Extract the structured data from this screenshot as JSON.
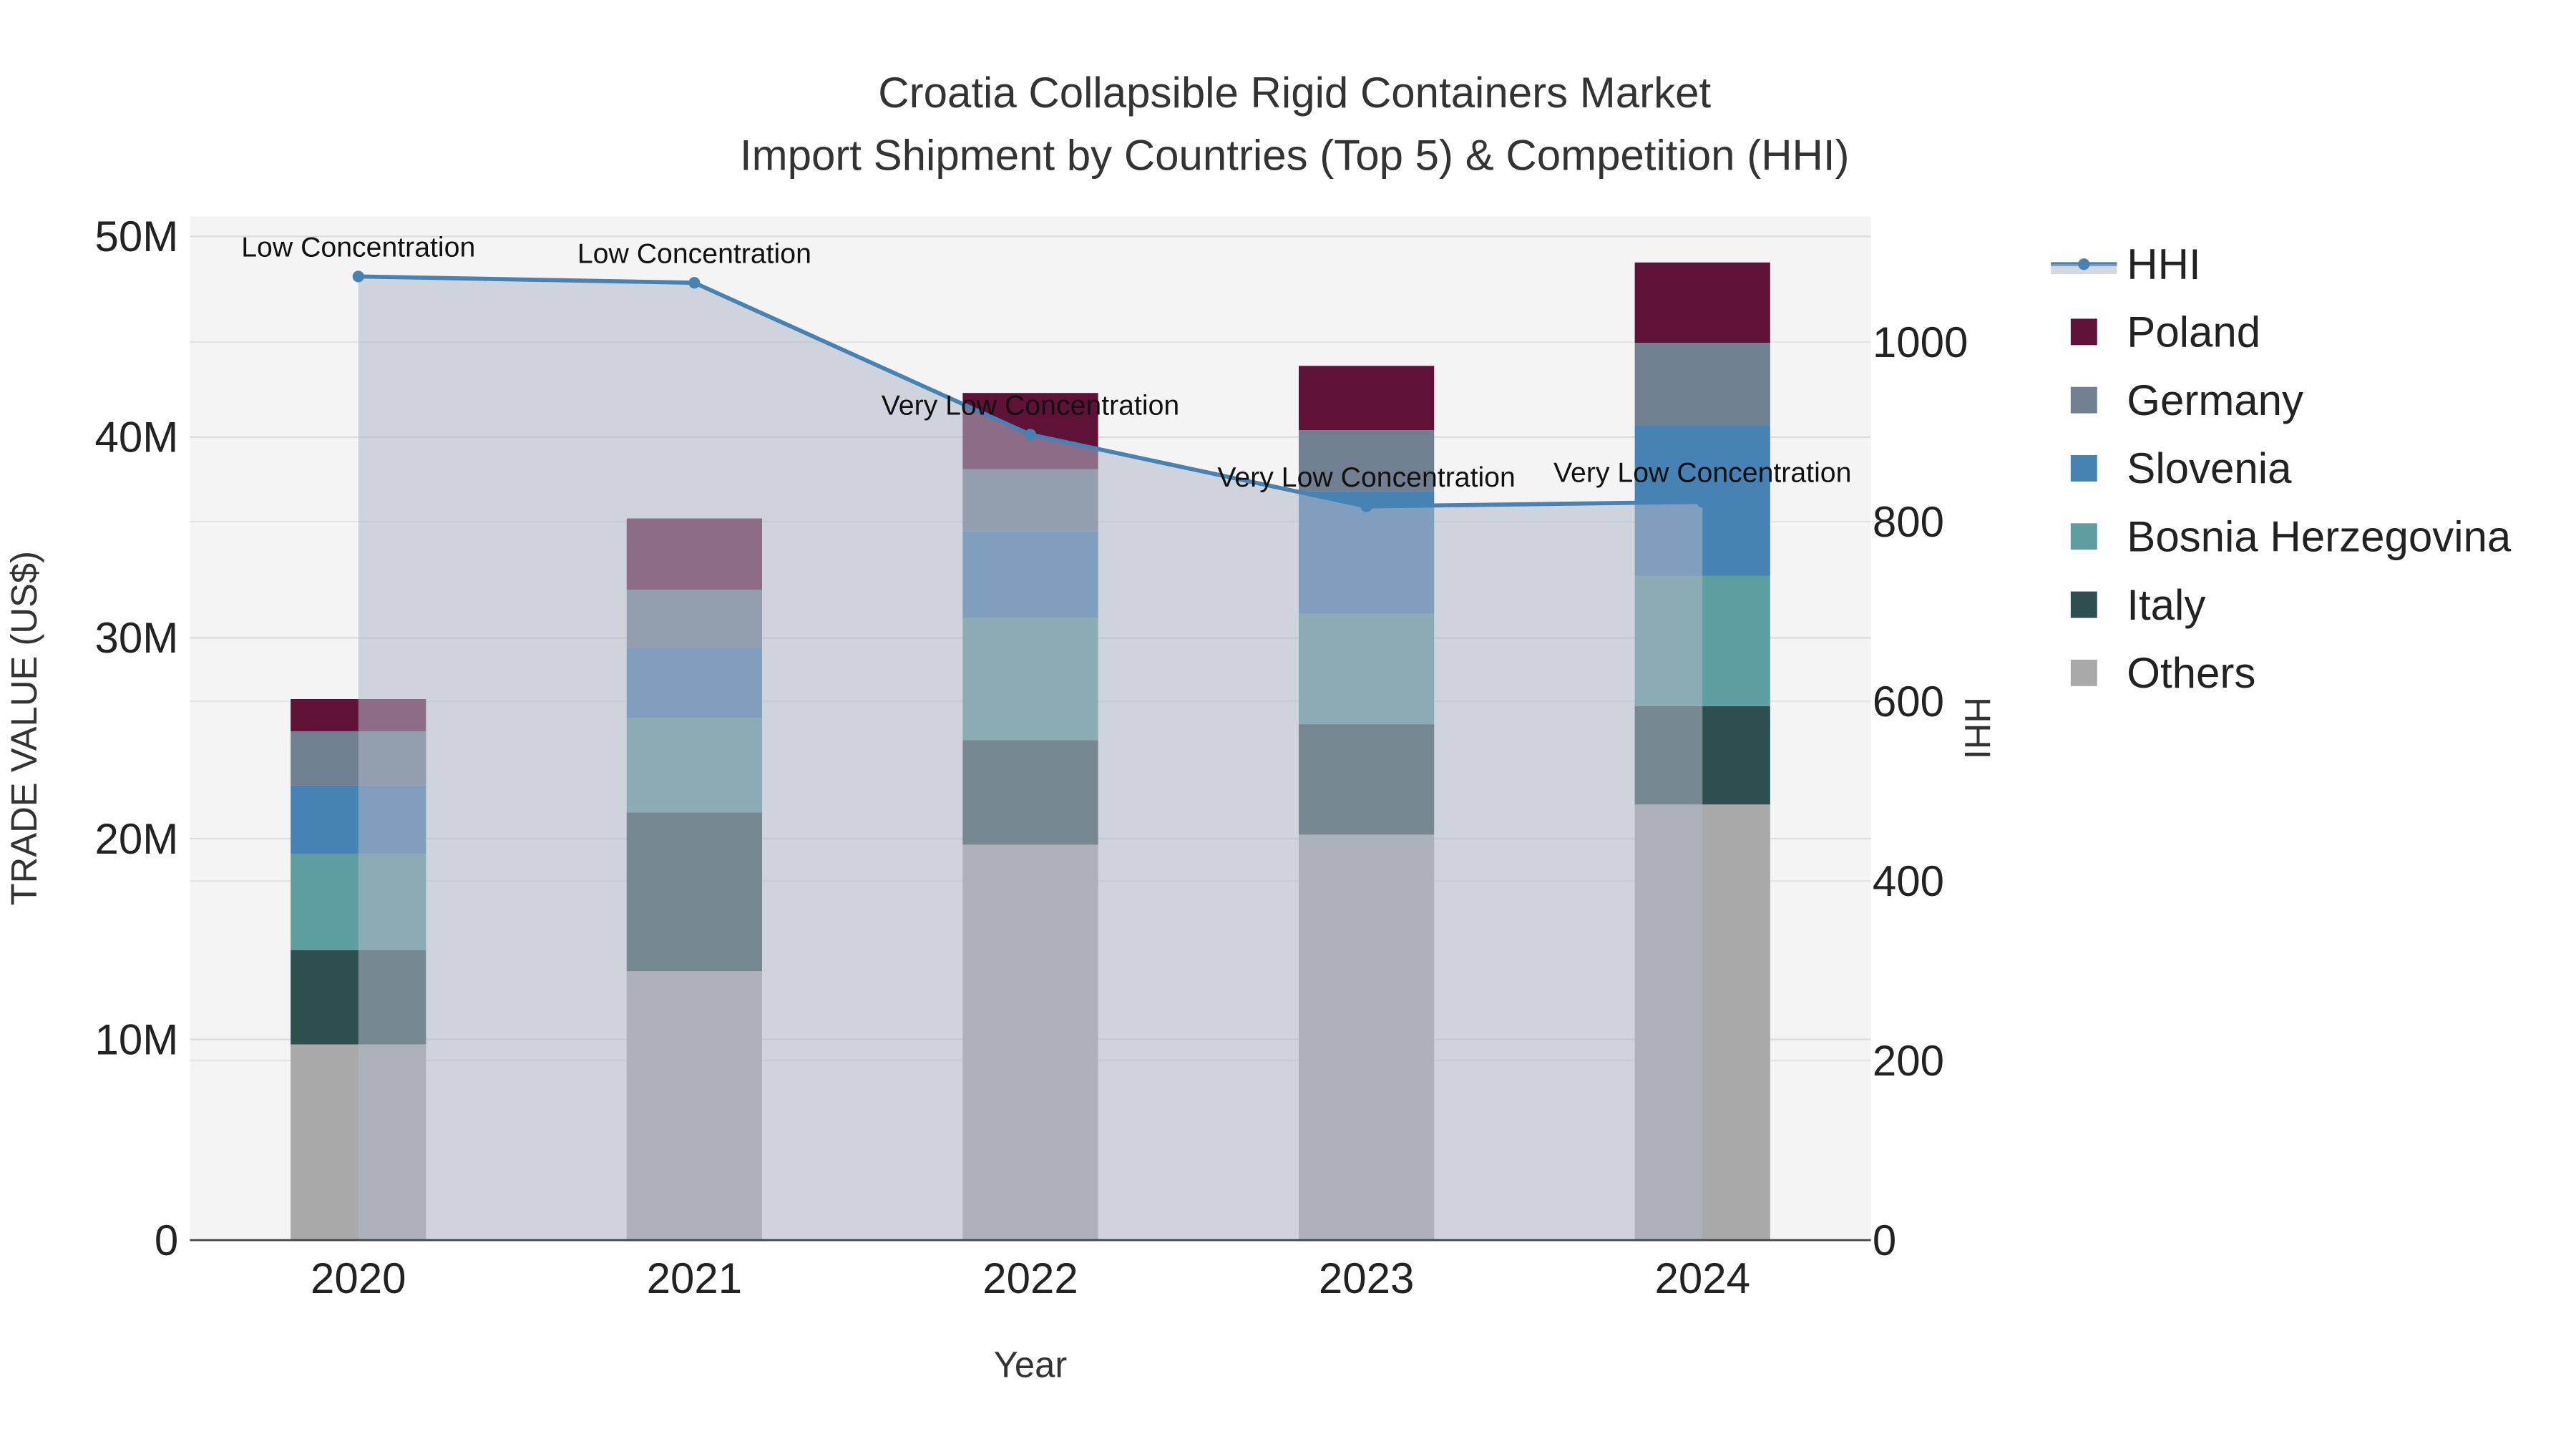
{
  "chart_data": {
    "type": "bar",
    "title": "Croatia Collapsible Rigid Containers Market",
    "subtitle": "Import Shipment by Countries (Top 5) & Competition (HHI)",
    "xlabel": "Year",
    "ylabel": "TRADE VALUE (US$)",
    "y2label": "HHI",
    "categories": [
      "2020",
      "2021",
      "2022",
      "2023",
      "2024"
    ],
    "ylim": [
      0,
      51000000
    ],
    "y_ticks": [
      0,
      10000000,
      20000000,
      30000000,
      40000000,
      50000000
    ],
    "y_tick_labels": [
      "0",
      "10M",
      "20M",
      "30M",
      "40M",
      "50M"
    ],
    "y2lim": [
      0,
      1140
    ],
    "y2_ticks": [
      0,
      200,
      400,
      600,
      800,
      1000
    ],
    "y2_tick_labels": [
      "0",
      "200",
      "400",
      "600",
      "800",
      "1000"
    ],
    "stacked": true,
    "grid": true,
    "legend_placement": "right",
    "series": [
      {
        "name": "Others",
        "color": "#a9a9a9",
        "values": [
          9750000,
          13400000,
          19700000,
          20200000,
          21700000
        ]
      },
      {
        "name": "Italy",
        "color": "#2f4f4f",
        "values": [
          4700000,
          7900000,
          5200000,
          5500000,
          4900000
        ]
      },
      {
        "name": "Bosnia Herzegovina",
        "color": "#5f9ea0",
        "values": [
          4800000,
          4700000,
          6100000,
          5500000,
          6500000
        ]
      },
      {
        "name": "Slovenia",
        "color": "#4682b4",
        "values": [
          3400000,
          3500000,
          4300000,
          6100000,
          7500000
        ]
      },
      {
        "name": "Germany",
        "color": "#708090",
        "values": [
          2700000,
          2900000,
          3100000,
          3050000,
          4100000
        ]
      },
      {
        "name": "Poland",
        "color": "#5f1236",
        "values": [
          1600000,
          3550000,
          3800000,
          3200000,
          4000000
        ]
      }
    ],
    "hhi": {
      "name": "HHI",
      "color": "#4682b4",
      "values": [
        1073,
        1066,
        897,
        817,
        822
      ],
      "annotations": [
        "Low Concentration",
        "Low Concentration",
        "Very Low Concentration",
        "Very Low Concentration",
        "Very Low Concentration"
      ]
    },
    "legend": [
      "HHI",
      "Poland",
      "Germany",
      "Slovenia",
      "Bosnia Herzegovina",
      "Italy",
      "Others"
    ]
  }
}
